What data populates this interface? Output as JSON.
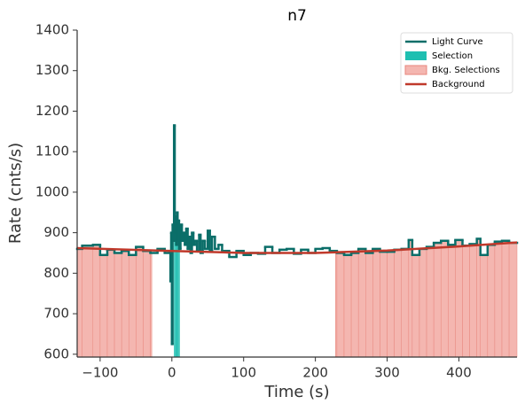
{
  "chart_data": {
    "type": "step-line",
    "title": "n7",
    "xlabel": "Time (s)",
    "ylabel": "Rate (cnts/s)",
    "xlim": [
      -132,
      481
    ],
    "ylim": [
      593,
      1400
    ],
    "xticks": [
      {
        "value": -100,
        "label": "−100"
      },
      0,
      100,
      200,
      300,
      400
    ],
    "yticks": [
      600,
      700,
      800,
      900,
      1000,
      1100,
      1200,
      1300,
      1400
    ],
    "legend": "upper right",
    "series": [
      {
        "name": "Light Curve",
        "color": "#0b6e69",
        "x": [
          -132,
          -125,
          -110,
          -100,
          -90,
          -80,
          -70,
          -60,
          -50,
          -40,
          -30,
          -20,
          -10,
          -3,
          -2,
          -1,
          0,
          1,
          2,
          3,
          4,
          5,
          6,
          7,
          8,
          9,
          10,
          12,
          14,
          16,
          18,
          20,
          22,
          24,
          26,
          28,
          30,
          32,
          35,
          38,
          40,
          43,
          46,
          50,
          53,
          56,
          60,
          65,
          70,
          80,
          90,
          100,
          110,
          120,
          130,
          140,
          150,
          160,
          170,
          180,
          190,
          200,
          210,
          220,
          230,
          240,
          250,
          260,
          270,
          280,
          290,
          300,
          310,
          320,
          330,
          335,
          345,
          355,
          365,
          375,
          385,
          395,
          405,
          415,
          425,
          430,
          440,
          450,
          460,
          470
        ],
        "values": [
          860,
          868,
          870,
          845,
          858,
          850,
          855,
          845,
          865,
          855,
          850,
          860,
          850,
          855,
          780,
          900,
          625,
          920,
          880,
          1165,
          900,
          940,
          870,
          950,
          880,
          930,
          860,
          920,
          880,
          900,
          870,
          910,
          860,
          890,
          850,
          900,
          870,
          880,
          855,
          895,
          850,
          880,
          860,
          905,
          855,
          890,
          860,
          870,
          855,
          840,
          855,
          845,
          850,
          848,
          865,
          850,
          858,
          860,
          848,
          858,
          850,
          860,
          862,
          855,
          850,
          845,
          850,
          860,
          850,
          860,
          853,
          853,
          858,
          860,
          882,
          845,
          860,
          865,
          875,
          880,
          870,
          882,
          868,
          872,
          885,
          845,
          870,
          878,
          880,
          875
        ]
      },
      {
        "name": "Selection",
        "color": "#1fbfb1",
        "range": [
          3,
          11
        ]
      },
      {
        "name": "Bkg. Selections",
        "color": "#f4b6b0",
        "ranges": [
          [
            -132,
            -28
          ],
          [
            228,
            481
          ]
        ]
      },
      {
        "name": "Background",
        "color": "#c0392b",
        "x": [
          -132,
          0,
          100,
          200,
          300,
          400,
          481
        ],
        "values": [
          862,
          855,
          850,
          850,
          856,
          866,
          876
        ]
      }
    ]
  }
}
